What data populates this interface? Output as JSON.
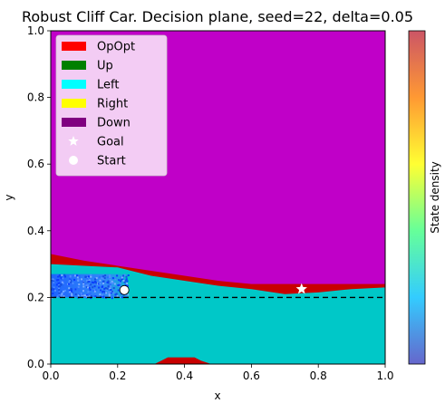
{
  "chart_data": {
    "type": "heatmap",
    "title": "Robust Cliff Car. Decision plane, seed=22, delta=0.05",
    "xlabel": "x",
    "ylabel": "y",
    "xlim": [
      0.0,
      1.0
    ],
    "ylim": [
      0.0,
      1.0
    ],
    "xticks": [
      "0.0",
      "0.2",
      "0.4",
      "0.6",
      "0.8",
      "1.0"
    ],
    "yticks": [
      "0.0",
      "0.2",
      "0.4",
      "0.6",
      "0.8",
      "1.0"
    ],
    "grid": false,
    "legend_position": "upper-left",
    "legend": [
      {
        "label": "OpOpt",
        "kind": "patch",
        "color": "#ff0000"
      },
      {
        "label": "Up",
        "kind": "patch",
        "color": "#008000"
      },
      {
        "label": "Left",
        "kind": "patch",
        "color": "#00ffff"
      },
      {
        "label": "Right",
        "kind": "patch",
        "color": "#ffff00"
      },
      {
        "label": "Down",
        "kind": "patch",
        "color": "#800080"
      },
      {
        "label": "Goal",
        "kind": "star",
        "color": "#ffffff"
      },
      {
        "label": "Start",
        "kind": "circle",
        "color": "#ffffff"
      }
    ],
    "region_colors": {
      "down": "#c000c8",
      "opopt": "#c80000",
      "left": "#00c8c8"
    },
    "regions": {
      "opopt_upper_boundary": [
        [
          0.0,
          0.33
        ],
        [
          0.1,
          0.31
        ],
        [
          0.2,
          0.295
        ],
        [
          0.3,
          0.28
        ],
        [
          0.4,
          0.265
        ],
        [
          0.5,
          0.25
        ],
        [
          0.6,
          0.24
        ],
        [
          0.7,
          0.24
        ],
        [
          0.8,
          0.24
        ],
        [
          0.9,
          0.24
        ],
        [
          1.0,
          0.24
        ]
      ],
      "left_upper_boundary": [
        [
          0.0,
          0.3
        ],
        [
          0.1,
          0.295
        ],
        [
          0.2,
          0.29
        ],
        [
          0.3,
          0.265
        ],
        [
          0.4,
          0.25
        ],
        [
          0.5,
          0.235
        ],
        [
          0.6,
          0.225
        ],
        [
          0.7,
          0.21
        ],
        [
          0.8,
          0.215
        ],
        [
          0.9,
          0.225
        ],
        [
          1.0,
          0.23
        ]
      ],
      "opopt_bottom_bump": [
        [
          0.31,
          0.0
        ],
        [
          0.33,
          0.01
        ],
        [
          0.35,
          0.02
        ],
        [
          0.43,
          0.02
        ],
        [
          0.45,
          0.01
        ],
        [
          0.48,
          0.0
        ]
      ]
    },
    "density_band": {
      "x_range": [
        0.0,
        0.23
      ],
      "y_range": [
        0.2,
        0.27
      ]
    },
    "cliff_line_y": 0.2,
    "goal": {
      "x": 0.75,
      "y": 0.225
    },
    "start": {
      "x": 0.22,
      "y": 0.222
    },
    "colorbar": {
      "label": "State density",
      "colors": [
        "#6666cc",
        "#33ccff",
        "#66ff99",
        "#ffff33",
        "#ff9933",
        "#cc5566"
      ]
    }
  }
}
